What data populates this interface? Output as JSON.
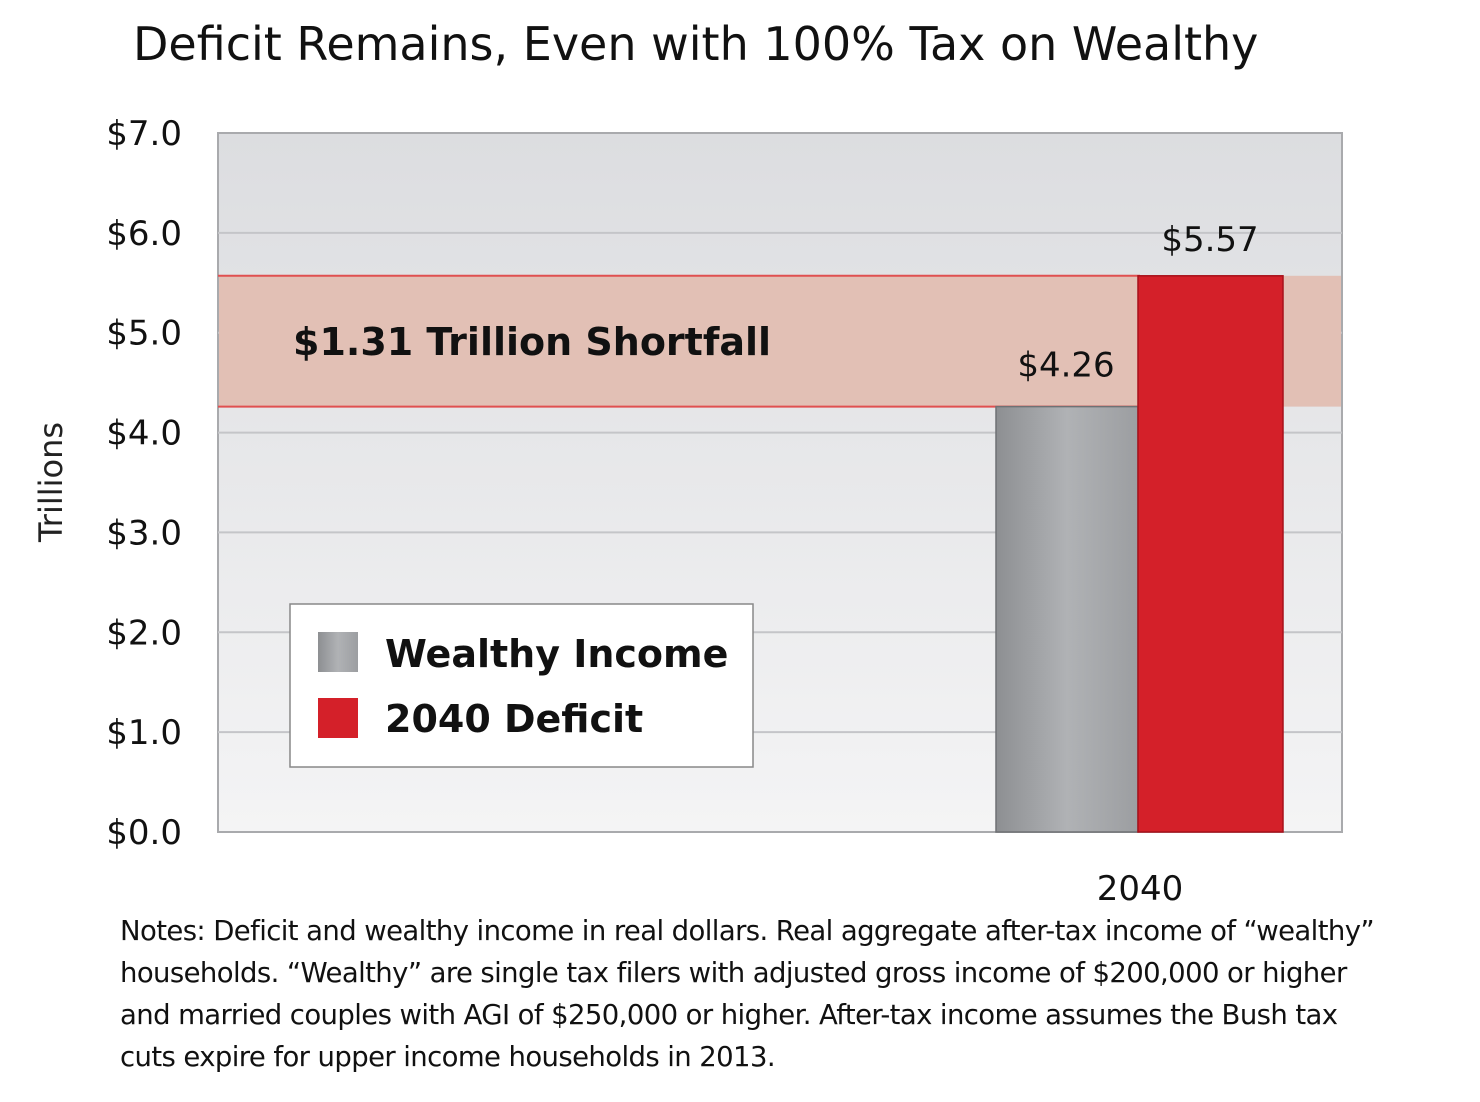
{
  "chart_data": {
    "type": "bar",
    "title": "Deficit Remains, Even with 100% Tax on Wealthy",
    "ylabel": "Trillions",
    "xlabel": "",
    "ylim": [
      0,
      7
    ],
    "yticks": [
      "$0.0",
      "$1.0",
      "$2.0",
      "$3.0",
      "$4.0",
      "$5.0",
      "$6.0",
      "$7.0"
    ],
    "grid": true,
    "categories": [
      "2040"
    ],
    "series": [
      {
        "name": "Wealthy Income",
        "values": [
          4.26
        ],
        "label": "$4.26",
        "color": "#a6a8ab"
      },
      {
        "name": "2040 Deficit",
        "values": [
          5.57
        ],
        "label": "$5.57",
        "color": "#d42029"
      }
    ],
    "annotation": {
      "text": "$1.31 Trillion Shortfall",
      "from": 4.26,
      "to": 5.57,
      "color": "#e2c0b5"
    },
    "legend_position": "bottom-left",
    "notes": "Notes: Deficit and wealthy income in real dollars. Real aggregate after-tax income of “wealthy” households. “Wealthy” are single tax filers with adjusted gross income of $200,000 or higher and married couples with AGI of $250,000 or higher. After-tax income assumes the Bush tax cuts expire for upper income households in 2013."
  }
}
